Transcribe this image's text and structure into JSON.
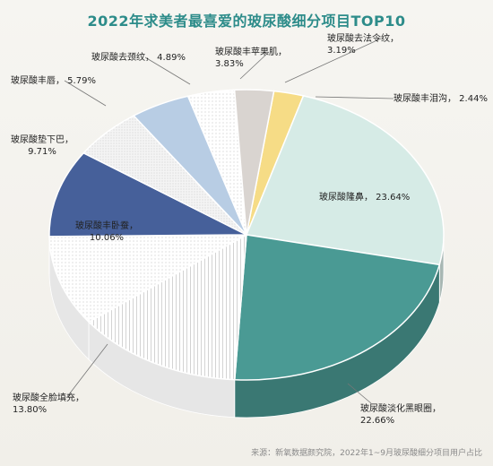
{
  "title": "2022年求美者最喜爱的玻尿酸细分项目TOP10",
  "source": "来源：新氧数据颜究院，2022年1~9月玻尿酸细分项目用户占比",
  "chart_data": {
    "type": "pie",
    "title": "2022年求美者最喜爱的玻尿酸细分项目TOP10",
    "legend": "none",
    "slices": [
      {
        "label": "玻尿酸丰泪沟",
        "value": 2.44,
        "display": "2.44%",
        "color": "#f6dc86"
      },
      {
        "label": "玻尿酸隆鼻",
        "value": 23.64,
        "display": "23.64%",
        "color": "#d6ebe6"
      },
      {
        "label": "玻尿酸淡化黑眼圈",
        "value": 22.66,
        "display": "22.66%",
        "color": "#4a9a94"
      },
      {
        "label": "玻尿酸全脸填充",
        "value": 13.8,
        "display": "13.80%",
        "color": "#ffffff"
      },
      {
        "label": "玻尿酸丰卧蚕",
        "value": 10.06,
        "display": "10.06%",
        "color": "#f7f7f7"
      },
      {
        "label": "玻尿酸垫下巴",
        "value": 9.71,
        "display": "9.71%",
        "color": "#46609a"
      },
      {
        "label": "玻尿酸丰唇",
        "value": 5.79,
        "display": "5.79%",
        "color": "#ffffff"
      },
      {
        "label": "玻尿酸去颈纹",
        "value": 4.89,
        "display": "4.89%",
        "color": "#b8cde4"
      },
      {
        "label": "玻尿酸丰苹果肌",
        "value": 3.83,
        "display": "3.83%",
        "color": "#ffffff"
      },
      {
        "label": "玻尿酸去法令纹",
        "value": 3.19,
        "display": "3.19%",
        "color": "#d9d4d0"
      }
    ]
  }
}
